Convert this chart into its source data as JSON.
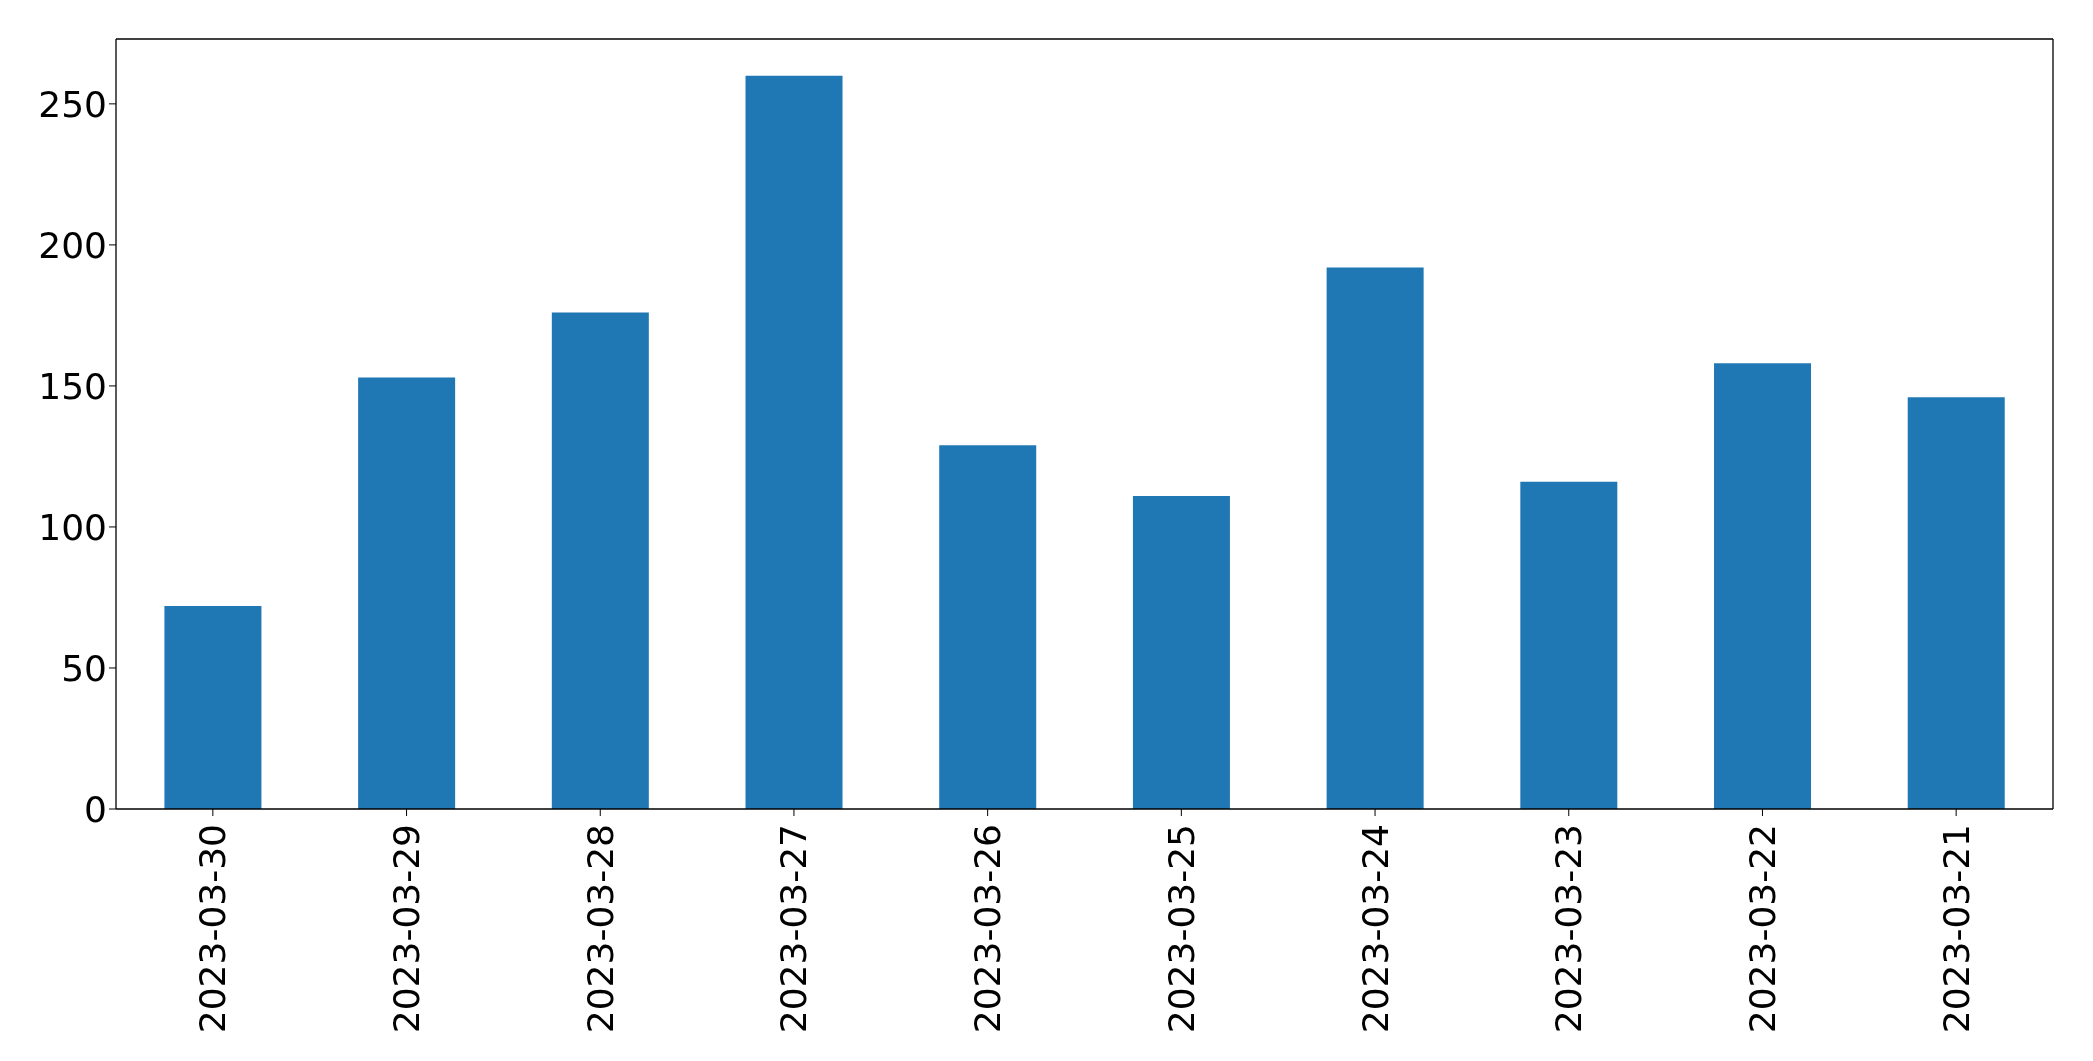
{
  "chart_data": {
    "type": "bar",
    "categories": [
      "2023-03-30",
      "2023-03-29",
      "2023-03-28",
      "2023-03-27",
      "2023-03-26",
      "2023-03-25",
      "2023-03-24",
      "2023-03-23",
      "2023-03-22",
      "2023-03-21"
    ],
    "values": [
      72,
      153,
      176,
      260,
      129,
      111,
      192,
      116,
      158,
      146
    ],
    "color": "#1f77b4",
    "ylim": [
      0,
      273
    ],
    "yticks": [
      0,
      50,
      100,
      150,
      200,
      250
    ]
  }
}
